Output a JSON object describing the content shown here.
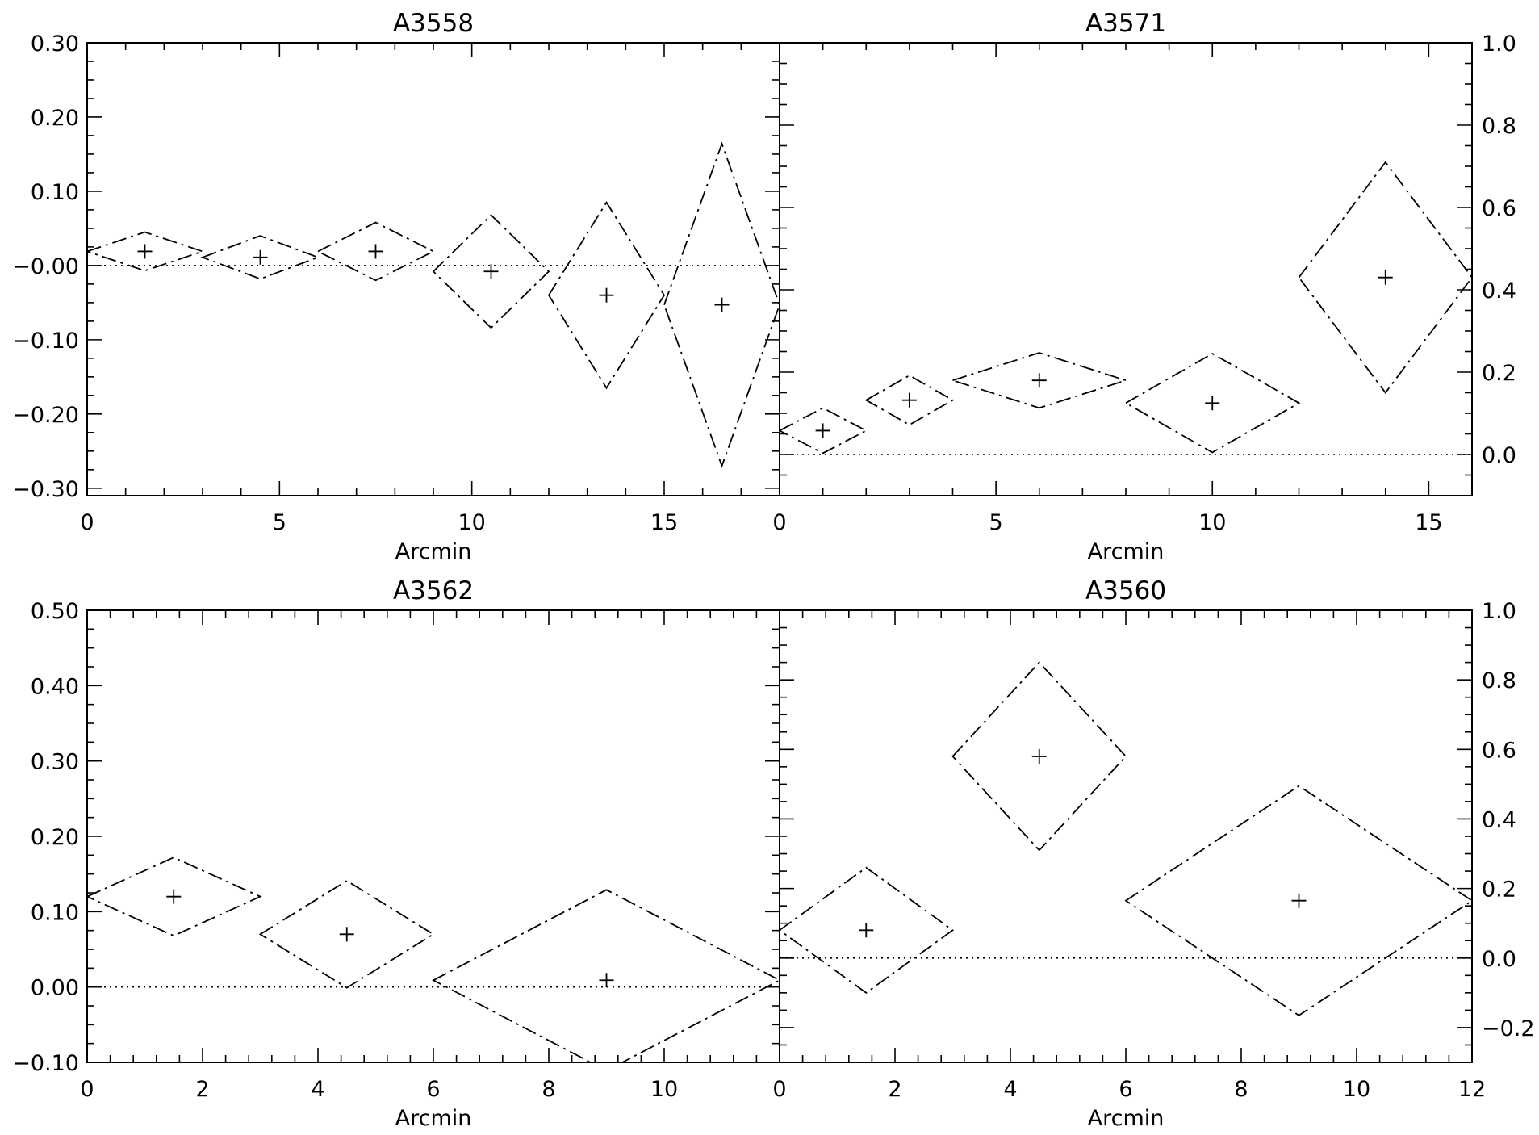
{
  "chart_data": [
    {
      "type": "scatter",
      "title": "A3558",
      "xlabel": "Arcmin",
      "ylabel": "",
      "xlim": [
        0,
        18
      ],
      "ylim": [
        -0.31,
        0.3
      ],
      "x_ticks": [
        "0",
        "5",
        "10",
        "15"
      ],
      "y_ticks": [
        "0.30",
        "0.20",
        "0.10",
        "-0.00",
        "-0.10",
        "-0.20",
        "-0.30"
      ],
      "y_axis_side": "left",
      "zero_line": true,
      "points": [
        {
          "x": 1.5,
          "y": 0.019,
          "xerr": 1.5,
          "yerr": 0.026
        },
        {
          "x": 4.5,
          "y": 0.011,
          "xerr": 1.5,
          "yerr": 0.029
        },
        {
          "x": 7.5,
          "y": 0.019,
          "xerr": 1.5,
          "yerr": 0.039
        },
        {
          "x": 10.5,
          "y": -0.008,
          "xerr": 1.5,
          "yerr": 0.076
        },
        {
          "x": 13.5,
          "y": -0.04,
          "xerr": 1.5,
          "yerr": 0.125
        },
        {
          "x": 16.5,
          "y": -0.053,
          "xerr": 1.5,
          "yerr": 0.217
        }
      ]
    },
    {
      "type": "scatter",
      "title": "A3571",
      "xlabel": "Arcmin",
      "ylabel": "",
      "xlim": [
        0,
        16
      ],
      "ylim": [
        -0.1,
        1.0
      ],
      "x_ticks": [
        "0",
        "5",
        "10",
        "15"
      ],
      "y_ticks": [
        "1.0",
        "0.8",
        "0.6",
        "0.4",
        "0.2",
        "0.0"
      ],
      "y_axis_side": "right",
      "zero_line": true,
      "points": [
        {
          "x": 1.0,
          "y": 0.058,
          "xerr": 1.0,
          "yerr": 0.055
        },
        {
          "x": 3.0,
          "y": 0.132,
          "xerr": 1.0,
          "yerr": 0.06
        },
        {
          "x": 6.0,
          "y": 0.18,
          "xerr": 2.0,
          "yerr": 0.067
        },
        {
          "x": 10.0,
          "y": 0.125,
          "xerr": 2.0,
          "yerr": 0.12
        },
        {
          "x": 14.0,
          "y": 0.43,
          "xerr": 2.0,
          "yerr": 0.28
        }
      ]
    },
    {
      "type": "scatter",
      "title": "A3562",
      "xlabel": "Arcmin",
      "ylabel": "",
      "xlim": [
        0,
        12
      ],
      "ylim": [
        -0.1,
        0.5
      ],
      "x_ticks": [
        "0",
        "2",
        "4",
        "6",
        "8",
        "10"
      ],
      "y_ticks": [
        "0.50",
        "0.40",
        "0.30",
        "0.20",
        "0.10",
        "0.00",
        "-0.10"
      ],
      "y_axis_side": "left",
      "zero_line": true,
      "points": [
        {
          "x": 1.5,
          "y": 0.12,
          "xerr": 1.5,
          "yerr": 0.052
        },
        {
          "x": 4.5,
          "y": 0.07,
          "xerr": 1.5,
          "yerr": 0.071
        },
        {
          "x": 9.0,
          "y": 0.009,
          "xerr": 3.0,
          "yerr": 0.12
        }
      ]
    },
    {
      "type": "scatter",
      "title": "A3560",
      "xlabel": "Arcmin",
      "ylabel": "",
      "xlim": [
        0,
        12
      ],
      "ylim": [
        -0.3,
        1.0
      ],
      "x_ticks": [
        "0",
        "2",
        "4",
        "6",
        "8",
        "10",
        "12"
      ],
      "y_ticks": [
        "1.0",
        "0.8",
        "0.6",
        "0.4",
        "0.2",
        "0.0",
        "-0.2"
      ],
      "y_axis_side": "right",
      "zero_line": true,
      "points": [
        {
          "x": 1.5,
          "y": 0.08,
          "xerr": 1.5,
          "yerr": 0.18
        },
        {
          "x": 4.5,
          "y": 0.58,
          "xerr": 1.5,
          "yerr": 0.27
        },
        {
          "x": 9.0,
          "y": 0.165,
          "xerr": 3.0,
          "yerr": 0.33
        }
      ]
    }
  ]
}
